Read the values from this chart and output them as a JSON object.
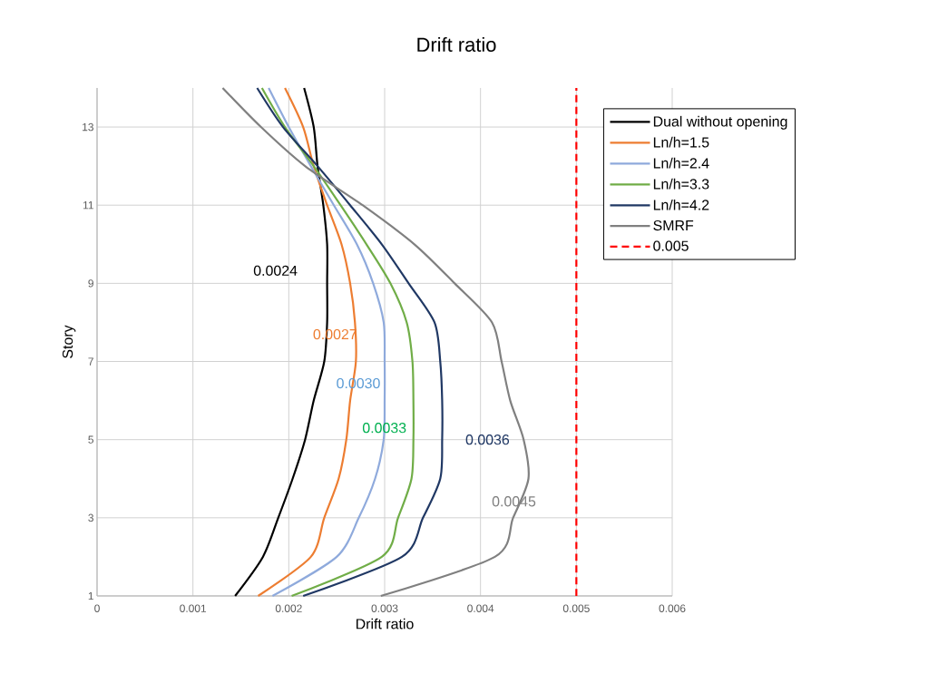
{
  "chart_data": {
    "type": "line",
    "title": "Drift ratio",
    "xlabel": "Drift ratio",
    "ylabel": "Story",
    "series": [
      {
        "name": "Dual without opening",
        "color": "#000000",
        "x": [
          0.00144,
          0.00173,
          0.00189,
          0.00204,
          0.00217,
          0.00226,
          0.00237,
          0.0024,
          0.0024,
          0.0024,
          0.00236,
          0.0023,
          0.00226,
          0.00216
        ],
        "values": [
          1,
          2,
          3,
          4,
          5,
          6,
          7,
          8,
          9,
          10,
          11,
          12,
          13,
          14
        ]
      },
      {
        "name": "Ln/h=1.5",
        "color": "#ed7d31",
        "x": [
          0.00168,
          0.00223,
          0.00237,
          0.00252,
          0.0026,
          0.00264,
          0.0027,
          0.00269,
          0.00264,
          0.00255,
          0.0024,
          0.00226,
          0.00215,
          0.00196
        ],
        "values": [
          1,
          2,
          3,
          4,
          5,
          6,
          7,
          8,
          9,
          10,
          11,
          12,
          13,
          14
        ]
      },
      {
        "name": "Ln/h=2.4",
        "color": "#8faadc",
        "x": [
          0.00183,
          0.0025,
          0.00273,
          0.0029,
          0.00299,
          0.003,
          0.003,
          0.00299,
          0.00288,
          0.00271,
          0.00247,
          0.00223,
          0.002,
          0.00179
        ],
        "values": [
          1,
          2,
          3,
          4,
          5,
          6,
          7,
          8,
          9,
          10,
          11,
          12,
          13,
          14
        ]
      },
      {
        "name": "Ln/h=3.3",
        "color": "#70ad47",
        "x": [
          0.00203,
          0.00297,
          0.00314,
          0.00328,
          0.0033,
          0.0033,
          0.00329,
          0.00323,
          0.00306,
          0.00281,
          0.00254,
          0.00226,
          0.00196,
          0.00172
        ],
        "values": [
          1,
          2,
          3,
          4,
          5,
          6,
          7,
          8,
          9,
          10,
          11,
          12,
          13,
          14
        ]
      },
      {
        "name": "Ln/h=4.2",
        "color": "#203864",
        "x": [
          0.00215,
          0.00318,
          0.0034,
          0.00358,
          0.0036,
          0.0036,
          0.00358,
          0.00352,
          0.00325,
          0.00297,
          0.00264,
          0.0023,
          0.00194,
          0.00167
        ],
        "values": [
          1,
          2,
          3,
          4,
          5,
          6,
          7,
          8,
          9,
          10,
          11,
          12,
          13,
          14
        ]
      },
      {
        "name": "SMRF",
        "color": "#808080",
        "x": [
          0.00296,
          0.00415,
          0.00434,
          0.0045,
          0.00445,
          0.00431,
          0.00422,
          0.00412,
          0.00373,
          0.00331,
          0.00277,
          0.00217,
          0.00171,
          0.00131
        ],
        "values": [
          1,
          2,
          3,
          4,
          5,
          6,
          7,
          8,
          9,
          10,
          11,
          12,
          13,
          14
        ]
      },
      {
        "name": "0.005",
        "color": "#ff0000",
        "line_style": "dashed",
        "x": [
          0.005,
          0.005
        ],
        "values": [
          1,
          14
        ]
      }
    ],
    "annotations": [
      {
        "text": "0.0024",
        "x": 0.0024,
        "y": 9
      },
      {
        "text": "0.0027",
        "x": 0.0027,
        "y": 7
      },
      {
        "text": "0.0030",
        "x": 0.003,
        "y": 7
      },
      {
        "text": "0.0033",
        "x": 0.0033,
        "y": 5
      },
      {
        "text": "0.0036",
        "x": 0.0036,
        "y": 5
      },
      {
        "text": "0.0045",
        "x": 0.0045,
        "y": 4
      }
    ],
    "xlim": [
      0,
      0.006
    ],
    "ylim": [
      1,
      14
    ],
    "xticks": [
      0,
      0.001,
      0.002,
      0.003,
      0.004,
      0.005,
      0.006
    ],
    "yticks": [
      1,
      3,
      5,
      7,
      9,
      11,
      13
    ],
    "grid": true,
    "legend": "top right",
    "marker": "none",
    "line_style": "solid"
  }
}
